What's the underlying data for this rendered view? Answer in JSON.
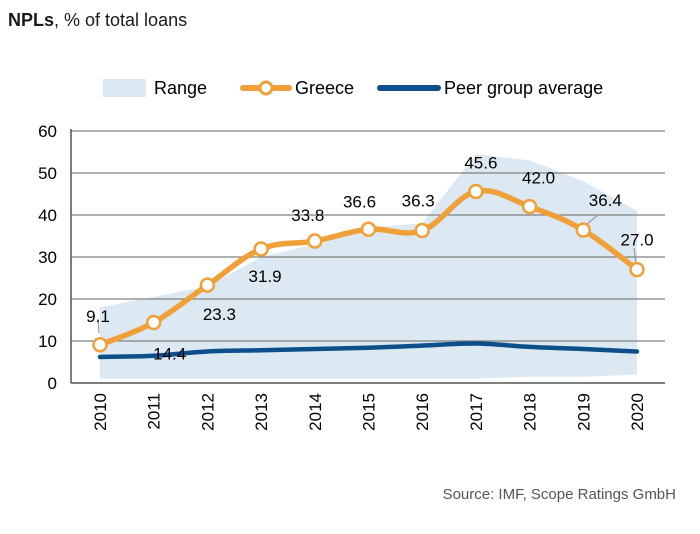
{
  "title": {
    "bold": "NPLs",
    "rest": ", % of total loans"
  },
  "source": "Source: IMF, Scope Ratings GmbH",
  "colors": {
    "range": "#dce8f2",
    "greece": "#f0a038",
    "peer": "#0d4f8b",
    "axis": "#555555",
    "grid": "#808080"
  },
  "chart_data": {
    "type": "line",
    "categories": [
      "2010",
      "2011",
      "2012",
      "2013",
      "2014",
      "2015",
      "2016",
      "2017",
      "2018",
      "2019",
      "2020"
    ],
    "ylim": [
      0,
      60
    ],
    "yticks": [
      0,
      10,
      20,
      30,
      40,
      50,
      60
    ],
    "grid": true,
    "legend_position": "top",
    "range": {
      "name": "Range",
      "low": [
        1,
        1,
        1,
        1,
        1,
        1,
        1,
        1,
        1.5,
        1.5,
        2
      ],
      "high": [
        18,
        20.5,
        23,
        30,
        33,
        37,
        38,
        54.5,
        53,
        48,
        41
      ]
    },
    "series": [
      {
        "name": "Greece",
        "values": [
          9.1,
          14.4,
          23.3,
          31.9,
          33.8,
          36.6,
          36.3,
          45.6,
          42.0,
          36.4,
          27.0
        ],
        "labels": [
          "9.1",
          "14.4",
          "23.3",
          "31.9",
          "33.8",
          "36.6",
          "36.3",
          "45.6",
          "42.0",
          "36.4",
          "27.0"
        ]
      },
      {
        "name": "Peer group average",
        "values": [
          6.2,
          6.5,
          7.5,
          7.8,
          8.1,
          8.4,
          8.9,
          9.4,
          8.6,
          8.1,
          7.5
        ]
      }
    ]
  }
}
